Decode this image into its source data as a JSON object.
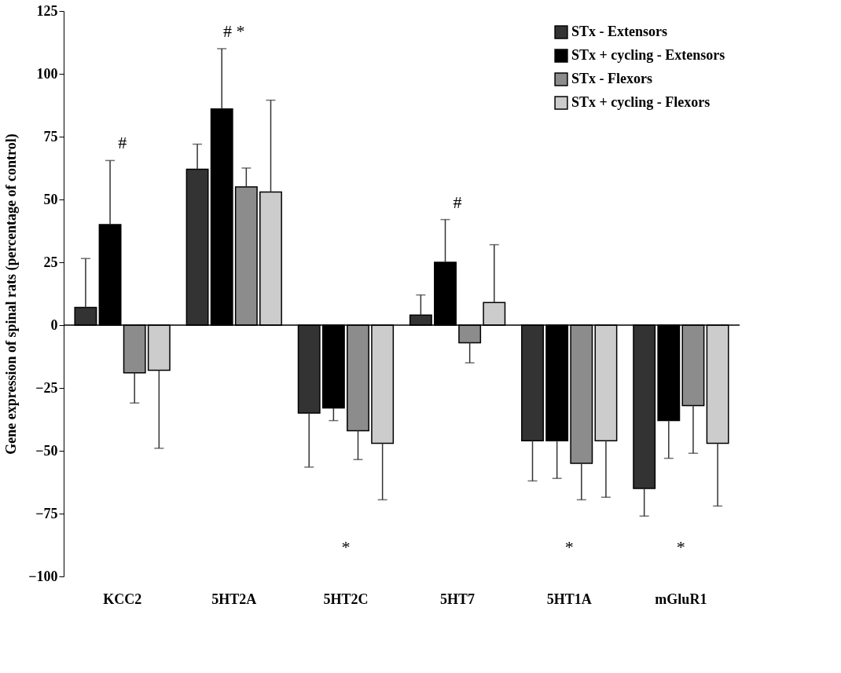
{
  "chart_data": {
    "type": "bar",
    "ylabel": "Gene expression of spinal rats (percentage of control)",
    "categories": [
      "KCC2",
      "5HT2A",
      "5HT2C",
      "5HT7",
      "5HT1A",
      "mGluR1"
    ],
    "series": [
      {
        "name": "STx - Extensors",
        "color": "#333333",
        "values": [
          7,
          62,
          -35,
          4,
          -46,
          -65
        ],
        "errors": [
          [
            7,
            26.5
          ],
          [
            62,
            72
          ],
          [
            -56.5,
            -35
          ],
          [
            4,
            12
          ],
          [
            -62,
            -46
          ],
          [
            -76,
            -65
          ]
        ]
      },
      {
        "name": "STx + cycling - Extensors",
        "color": "#000000",
        "values": [
          40,
          86,
          -33,
          25,
          -46,
          -38
        ],
        "errors": [
          [
            40,
            65.5
          ],
          [
            86,
            110
          ],
          [
            -38,
            -33
          ],
          [
            25,
            42
          ],
          [
            -61,
            -46
          ],
          [
            -53,
            -38
          ]
        ]
      },
      {
        "name": "STx - Flexors",
        "color": "#8c8c8c",
        "values": [
          -19,
          55,
          -42,
          -7,
          -55,
          -32
        ],
        "errors": [
          [
            -31,
            -19
          ],
          [
            55,
            62.5
          ],
          [
            -53.5,
            -42
          ],
          [
            -15,
            -7
          ],
          [
            -69.5,
            -55
          ],
          [
            -51,
            -32
          ]
        ]
      },
      {
        "name": "STx + cycling - Flexors",
        "color": "#cccccc",
        "values": [
          -18,
          53,
          -47,
          9,
          -46,
          -47
        ],
        "errors": [
          [
            -49,
            -18
          ],
          [
            53,
            89.5
          ],
          [
            -69.5,
            -47
          ],
          [
            9,
            32
          ],
          [
            -68.5,
            -46
          ],
          [
            -72,
            -47
          ]
        ]
      }
    ],
    "ylim": [
      -100,
      125
    ],
    "yticks": [
      -100,
      -75,
      -50,
      -25,
      0,
      25,
      50,
      75,
      100,
      125
    ],
    "grid": false,
    "legend": "top right",
    "ref_lines": [
      {
        "axis": "y",
        "value": 0,
        "color": "#000000"
      }
    ],
    "annotations": [
      "#",
      "# *",
      "*",
      "#",
      "*",
      "*"
    ]
  }
}
